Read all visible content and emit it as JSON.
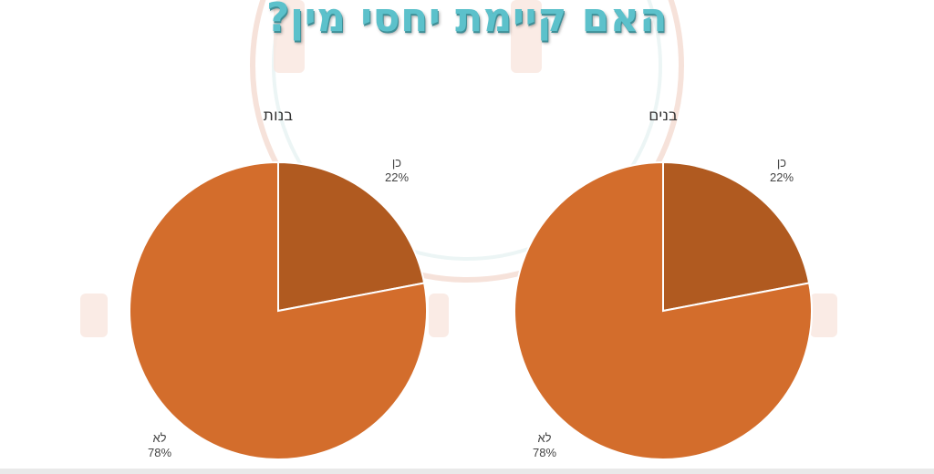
{
  "page": {
    "title": "האם קיימת יחסי מין?"
  },
  "colors": {
    "no_slice": "#d36d2c",
    "yes_slice": "#b05a20",
    "title": "#5cc1cb",
    "watermark": "#f6dfd6"
  },
  "chart_data": [
    {
      "type": "pie",
      "title": "בנים",
      "slices": [
        {
          "label": "כן",
          "value": 22,
          "value_label": "22%",
          "color": "#b05a20"
        },
        {
          "label": "לא",
          "value": 78,
          "value_label": "78%",
          "color": "#d36d2c"
        }
      ],
      "start_angle": "12 o'clock",
      "direction": "clockwise",
      "legend": "none"
    },
    {
      "type": "pie",
      "title": "בנות",
      "slices": [
        {
          "label": "כן",
          "value": 22,
          "value_label": "22%",
          "color": "#b05a20"
        },
        {
          "label": "לא",
          "value": 78,
          "value_label": "78%",
          "color": "#d36d2c"
        }
      ],
      "start_angle": "12 o'clock",
      "direction": "clockwise",
      "legend": "none"
    }
  ]
}
